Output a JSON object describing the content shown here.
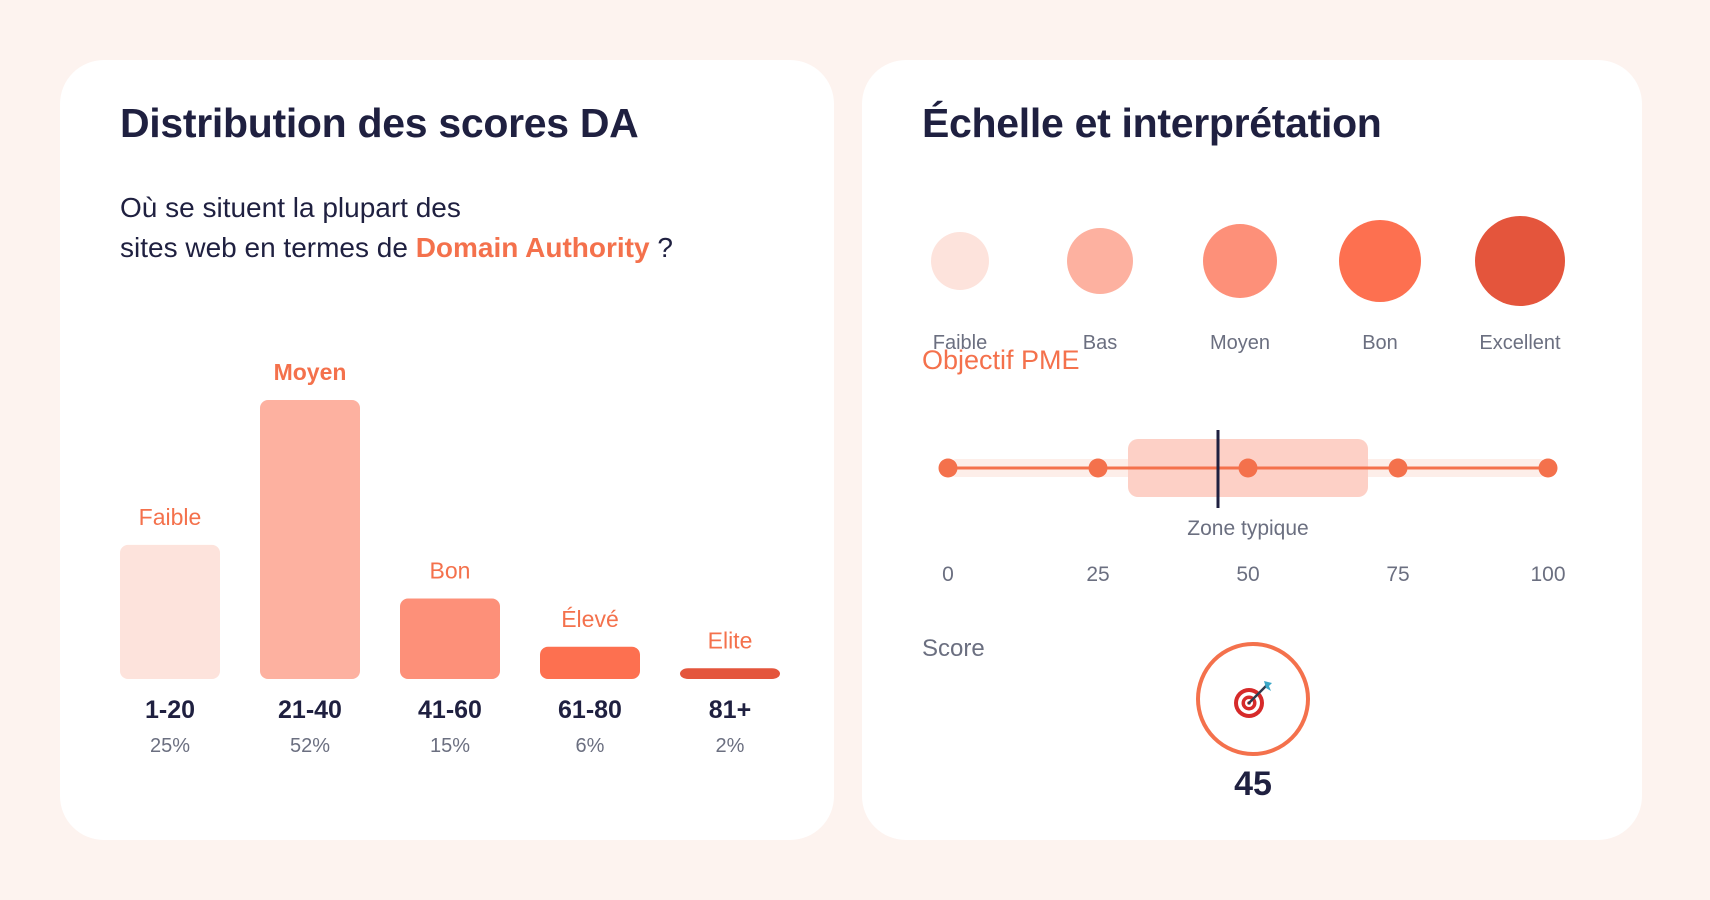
{
  "left_card": {
    "title": "Distribution des scores DA",
    "subtitle_line1": "Où se situent la plupart des",
    "subtitle_line2_prefix": "sites web en termes de ",
    "subtitle_accent": "Domain Authority",
    "subtitle_suffix": " ?"
  },
  "chart_data": [
    {
      "type": "bar",
      "categories": [
        "1-20",
        "21-40",
        "41-60",
        "61-80",
        "81+"
      ],
      "values": [
        25,
        52,
        15,
        6,
        2
      ],
      "percent_labels": [
        "25%",
        "52%",
        "15%",
        "6%",
        "2%"
      ],
      "bar_labels": [
        "Faible",
        "Moyen",
        "Bon",
        "Élevé",
        "Elite"
      ],
      "highlighted_index": 1,
      "colors": [
        "#fde3dc",
        "#fdb1a0",
        "#fd9079",
        "#fd7050",
        "#e4553c"
      ],
      "label_color": "#f4714c",
      "title": "Distribution des scores DA",
      "xlabel": "",
      "ylabel": "",
      "grid": false
    },
    {
      "type": "scatter",
      "title": "Objectif PME",
      "x": [
        0,
        25,
        50,
        75,
        100
      ],
      "tick_labels": [
        "0",
        "25",
        "50",
        "75",
        "100"
      ],
      "xlim": [
        0,
        100
      ],
      "zone": {
        "from": 30,
        "to": 70,
        "label": "Zone typique"
      },
      "marker_value": 45,
      "line_color": "#f4714c",
      "zone_color": "#fdd0c6"
    }
  ],
  "right_card": {
    "title": "Échelle et interprétation",
    "scale": [
      {
        "label": "Faible",
        "color": "#fde3dc"
      },
      {
        "label": "Bas",
        "color": "#fdb1a0"
      },
      {
        "label": "Moyen",
        "color": "#fd9079"
      },
      {
        "label": "Bon",
        "color": "#fd7050"
      },
      {
        "label": "Excellent",
        "color": "#e4553c"
      }
    ],
    "objectif_label": "Objectif PME",
    "score_label": "Score",
    "score_icon": "target-icon",
    "score_value": "45"
  }
}
